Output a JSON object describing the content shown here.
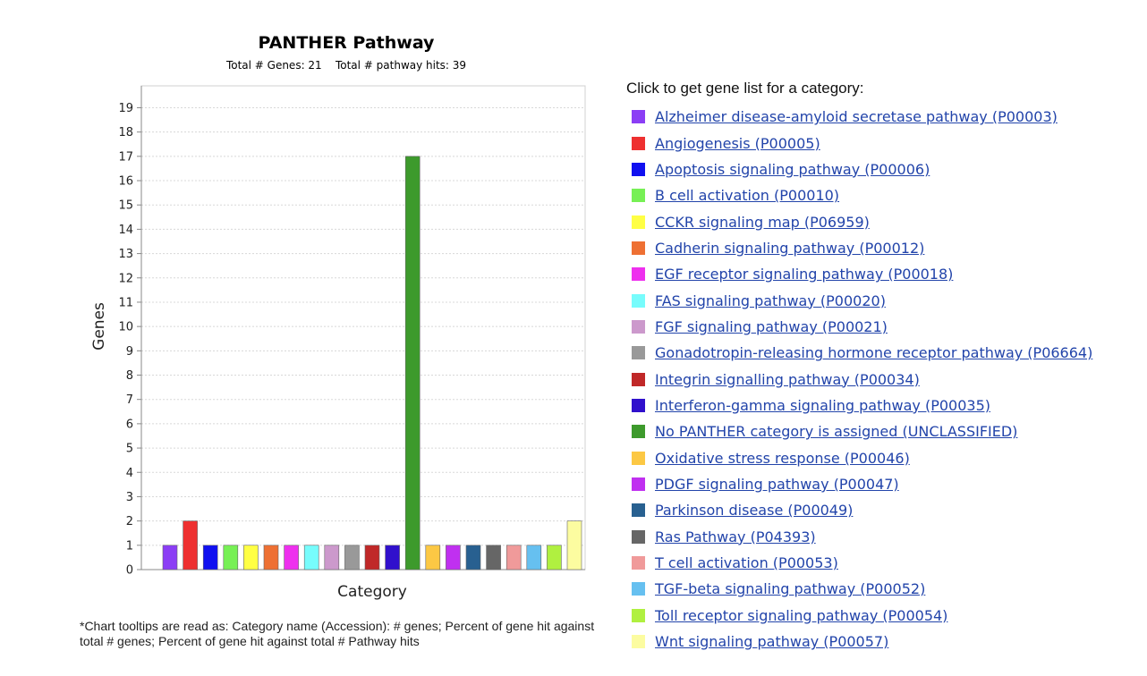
{
  "chart_data": {
    "type": "bar",
    "title": "PANTHER Pathway",
    "subtitle": "Total # Genes: 21    Total # pathway hits: 39",
    "xlabel": "Category",
    "ylabel": "Genes",
    "ylim": [
      0,
      19.9
    ],
    "yticks": [
      0,
      1,
      2,
      3,
      4,
      5,
      6,
      7,
      8,
      9,
      10,
      11,
      12,
      13,
      14,
      15,
      16,
      17,
      18,
      19
    ],
    "grid": true,
    "legend_position": "right",
    "categories": [
      "Alzheimer disease-amyloid secretase pathway (P00003)",
      "Angiogenesis (P00005)",
      "Apoptosis signaling pathway (P00006)",
      "B cell activation (P00010)",
      "CCKR signaling map (P06959)",
      "Cadherin signaling pathway (P00012)",
      "EGF receptor signaling pathway (P00018)",
      "FAS signaling pathway (P00020)",
      "FGF signaling pathway (P00021)",
      "Gonadotropin-releasing hormone receptor pathway (P06664)",
      "Integrin signalling pathway (P00034)",
      "Interferon-gamma signaling pathway (P00035)",
      "No PANTHER category is assigned (UNCLASSIFIED)",
      "Oxidative stress response (P00046)",
      "PDGF signaling pathway (P00047)",
      "Parkinson disease (P00049)",
      "Ras Pathway (P04393)",
      "T cell activation (P00053)",
      "TGF-beta signaling pathway (P00052)",
      "Toll receptor signaling pathway (P00054)",
      "Wnt signaling pathway (P00057)"
    ],
    "values": [
      1,
      2,
      1,
      1,
      1,
      1,
      1,
      1,
      1,
      1,
      1,
      1,
      17,
      1,
      1,
      1,
      1,
      1,
      1,
      1,
      2
    ],
    "colors": [
      "#8b3ef5",
      "#ee3030",
      "#1010f0",
      "#77f055",
      "#ffff44",
      "#ee7033",
      "#ee30ee",
      "#77fcfc",
      "#cc99cc",
      "#999999",
      "#c02828",
      "#3010cc",
      "#3d9a2c",
      "#fcc844",
      "#c030f0",
      "#286090",
      "#666666",
      "#f09a9a",
      "#66c0f0",
      "#b0f040",
      "#fcfca0"
    ]
  },
  "legend": {
    "heading": "Click to get gene list for a category:"
  },
  "footnote": "*Chart tooltips are read as: Category name (Accession): # genes; Percent of gene hit against total # genes; Percent of gene hit against total # Pathway hits"
}
